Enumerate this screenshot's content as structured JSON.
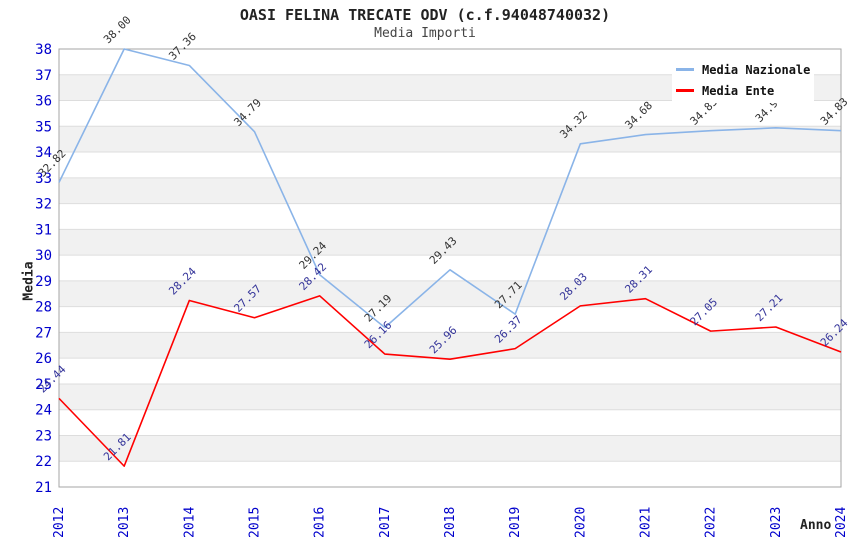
{
  "title": "OASI FELINA TRECATE ODV (c.f.94048740032)",
  "subtitle": "Media Importi",
  "chart_data": {
    "type": "line",
    "x": [
      2012,
      2013,
      2014,
      2015,
      2016,
      2017,
      2018,
      2019,
      2020,
      2021,
      2022,
      2023,
      2024
    ],
    "xlabel": "Anno",
    "ylabel": "Media",
    "ylim": [
      21,
      38
    ],
    "y_tick_step": 1,
    "grid": "horizontal alternating bands, gridline at every integer",
    "legend_position": "top-right",
    "series": [
      {
        "name": "Media Nazionale",
        "color": "#8ab4e8",
        "label_color": "#333333",
        "values": [
          32.82,
          38.0,
          37.36,
          34.79,
          29.24,
          27.19,
          29.43,
          27.71,
          34.32,
          34.68,
          34.83,
          34.94,
          34.83
        ]
      },
      {
        "name": "Media Ente",
        "color": "#ff0000",
        "label_color": "#333399",
        "values": [
          24.44,
          21.81,
          28.24,
          27.57,
          28.42,
          26.16,
          25.96,
          26.37,
          28.03,
          28.31,
          27.05,
          27.21,
          26.24
        ]
      }
    ],
    "colors": {
      "axis_tick_labels": "#0000cc",
      "band": "#f1f1f1",
      "gridline": "#dddddd",
      "plot_border": "#a6a6a6"
    }
  }
}
